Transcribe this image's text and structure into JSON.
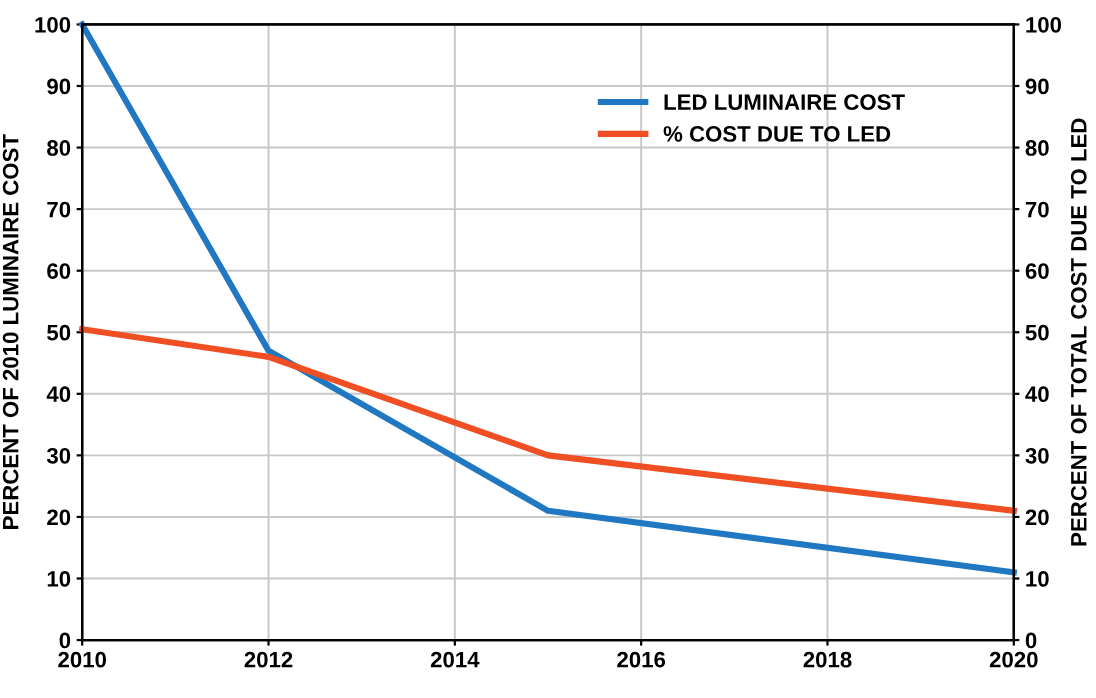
{
  "chart_data": {
    "type": "line",
    "ylabel": "PERCENT OF 2010 LUMINAIRE COST",
    "y2label": "PERCENT OF TOTAL COST DUE TO LED",
    "x": [
      2010,
      2012,
      2015,
      2020
    ],
    "series": [
      {
        "name": "LED LUMINAIRE COST",
        "color": "#1f78c1",
        "values": [
          100,
          47,
          21,
          11
        ]
      },
      {
        "name": "% COST DUE TO LED",
        "color": "#f04e23",
        "values": [
          50.5,
          46,
          30,
          21
        ],
        "axis": "y2"
      }
    ],
    "xlim": [
      2010,
      2020
    ],
    "xticks": [
      2010,
      2012,
      2014,
      2016,
      2018,
      2020
    ],
    "ylim": [
      0,
      100
    ],
    "yticks": [
      0,
      10,
      20,
      30,
      40,
      50,
      60,
      70,
      80,
      90,
      100
    ],
    "y2lim": [
      0,
      100
    ],
    "y2ticks": [
      0,
      10,
      20,
      30,
      40,
      50,
      60,
      70,
      80,
      90,
      100
    ],
    "grid": true,
    "legend": "top",
    "marker": "none",
    "line_style": "solid"
  }
}
